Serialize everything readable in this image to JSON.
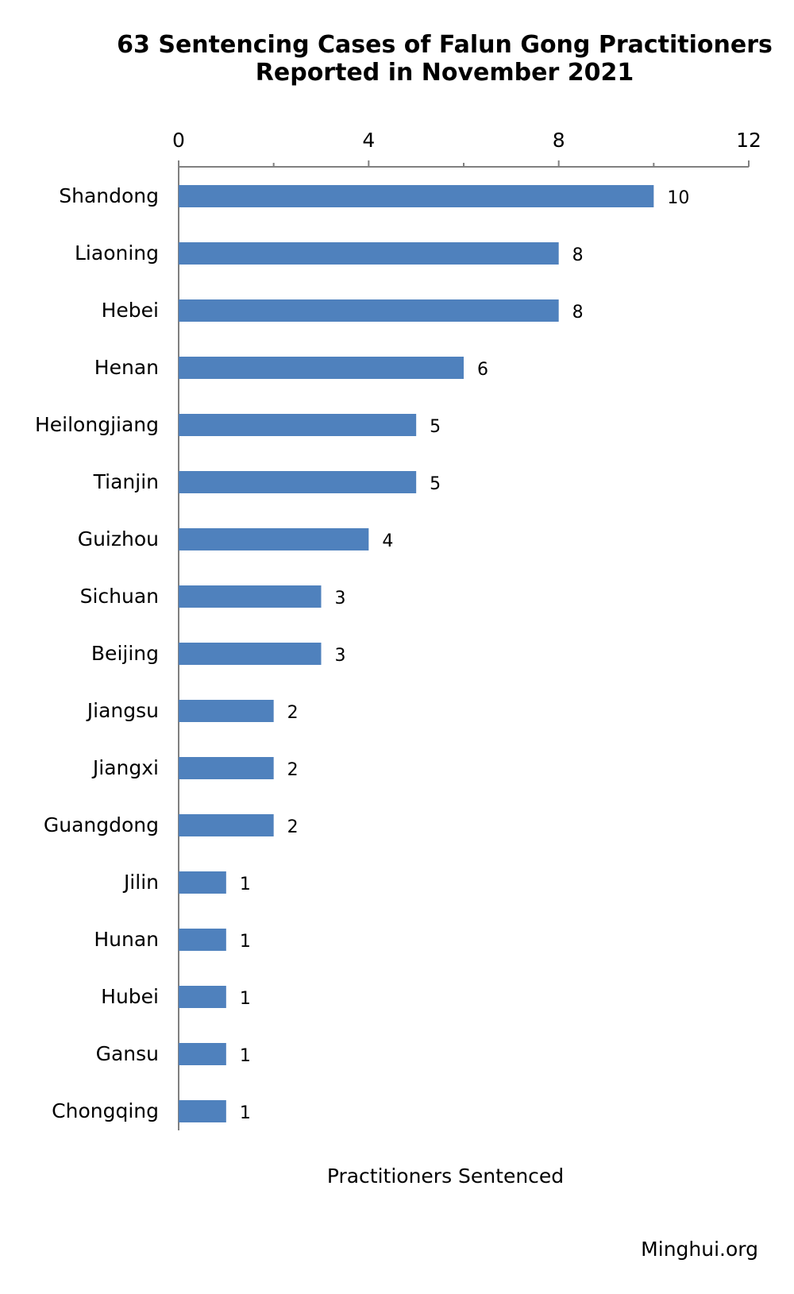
{
  "chart_data": {
    "type": "bar",
    "orientation": "horizontal",
    "title": "63 Sentencing Cases of Falun Gong Practitioners",
    "subtitle": "Reported in November 2021",
    "xlabel": "Practitioners Sentenced",
    "ylabel": "",
    "xlim": [
      0,
      12
    ],
    "major_ticks": [
      0,
      4,
      8,
      12
    ],
    "minor_ticks": [
      2,
      6,
      10
    ],
    "axis_position": "top",
    "grid": false,
    "legend": "none",
    "bar_color": "#4f81bd",
    "categories": [
      "Shandong",
      "Liaoning",
      "Hebei",
      "Henan",
      "Heilongjiang",
      "Tianjin",
      "Guizhou",
      "Sichuan",
      "Beijing",
      "Jiangsu",
      "Jiangxi",
      "Guangdong",
      "Jilin",
      "Hunan",
      "Hubei",
      "Gansu",
      "Chongqing"
    ],
    "values": [
      10,
      8,
      8,
      6,
      5,
      5,
      4,
      3,
      3,
      2,
      2,
      2,
      1,
      1,
      1,
      1,
      1
    ]
  },
  "credit": "Minghui.org"
}
